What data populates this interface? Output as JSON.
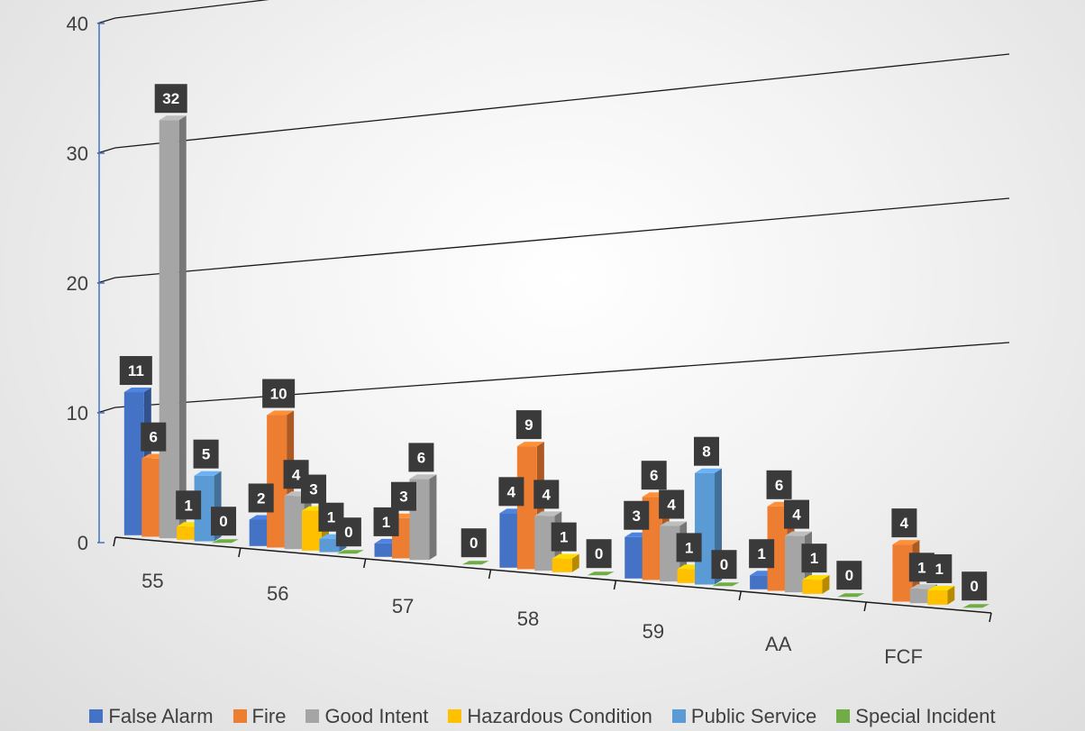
{
  "chart_data": {
    "type": "bar",
    "categories": [
      "55",
      "56",
      "57",
      "58",
      "59",
      "AA",
      "FCF"
    ],
    "series": [
      {
        "name": "False Alarm",
        "color": "#4472c4",
        "values": [
          11,
          2,
          1,
          4,
          3,
          1,
          null
        ]
      },
      {
        "name": "Fire",
        "color": "#ed7d31",
        "values": [
          6,
          10,
          3,
          9,
          6,
          6,
          4
        ]
      },
      {
        "name": "Good Intent",
        "color": "#a5a5a5",
        "values": [
          32,
          4,
          6,
          4,
          4,
          4,
          1
        ]
      },
      {
        "name": "Hazardous Condition",
        "color": "#ffc000",
        "values": [
          1,
          3,
          null,
          1,
          1,
          1,
          1
        ]
      },
      {
        "name": "Public Service",
        "color": "#5b9bd5",
        "values": [
          5,
          1,
          null,
          null,
          8,
          null,
          null
        ]
      },
      {
        "name": "Special Incident",
        "color": "#70ad47",
        "values": [
          0,
          0,
          0,
          0,
          0,
          0,
          0
        ]
      }
    ],
    "yticks": [
      "0",
      "10",
      "20",
      "30",
      "40"
    ],
    "ylim": [
      0,
      40
    ],
    "grid": true,
    "legend": "bottom",
    "style": "3d-perspective"
  }
}
